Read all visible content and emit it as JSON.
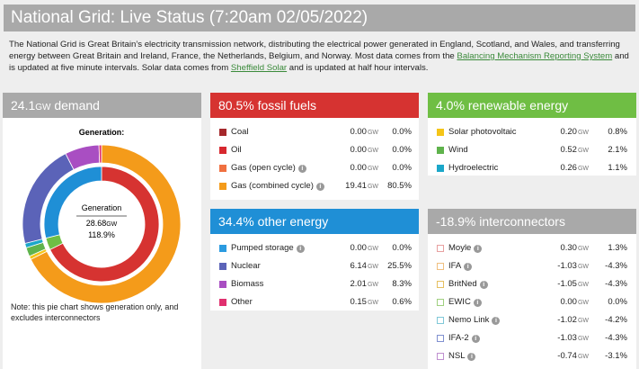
{
  "title": "National Grid: Live Status (7:20am 02/05/2022)",
  "intro": {
    "text1": "The National Grid is Great Britain’s electricity transmission network, distributing the electrical power generated in England, Scotland, and Wales, and transferring energy between Great Britain and Ireland, France, the Netherlands, Belgium, and Norway. Most data comes from the ",
    "link1": "Balancing Mechanism Reporting System",
    "text2": " and is updated at five minute intervals. Solar data comes from ",
    "link2": "Sheffield Solar",
    "text3": " and is updated at half hour intervals."
  },
  "unit": "GW",
  "demand": {
    "value": "24.1",
    "label": "demand"
  },
  "generation": {
    "heading": "Generation:",
    "label": "Generation",
    "total": "28.68",
    "percent": "118.9%"
  },
  "note": "Note: this pie chart shows generation only, and excludes interconnectors",
  "sections": [
    {
      "percent": "80.5%",
      "label": "fossil fuels",
      "color": "#d63331",
      "items": [
        {
          "name": "Coal",
          "gw": "0.00",
          "percent": "0.0%",
          "color": "#a5282b"
        },
        {
          "name": "Oil",
          "gw": "0.00",
          "percent": "0.0%",
          "color": "#d7282f"
        },
        {
          "name": "Gas (open cycle)",
          "gw": "0.00",
          "percent": "0.0%",
          "color": "#f07040",
          "info": true
        },
        {
          "name": "Gas (combined cycle)",
          "gw": "19.41",
          "percent": "80.5%",
          "color": "#f49b1a",
          "info": true
        }
      ]
    },
    {
      "percent": "4.0%",
      "label": "renewable energy",
      "color": "#6fbe44",
      "items": [
        {
          "name": "Solar photovoltaic",
          "gw": "0.20",
          "percent": "0.8%",
          "color": "#f5c518"
        },
        {
          "name": "Wind",
          "gw": "0.52",
          "percent": "2.1%",
          "color": "#5fb34c"
        },
        {
          "name": "Hydroelectric",
          "gw": "0.26",
          "percent": "1.1%",
          "color": "#1ba7c9"
        }
      ]
    },
    {
      "percent": "34.4%",
      "label": "other energy",
      "color": "#1f8fd6",
      "items": [
        {
          "name": "Pumped storage",
          "gw": "0.00",
          "percent": "0.0%",
          "color": "#2b9be0",
          "info": true
        },
        {
          "name": "Nuclear",
          "gw": "6.14",
          "percent": "25.5%",
          "color": "#5b63b8"
        },
        {
          "name": "Biomass",
          "gw": "2.01",
          "percent": "8.3%",
          "color": "#a94ec2"
        },
        {
          "name": "Other",
          "gw": "0.15",
          "percent": "0.6%",
          "color": "#e0306f"
        }
      ]
    },
    {
      "percent": "-18.9%",
      "label": "interconnectors",
      "color": "#a9a9a9",
      "outline": true,
      "items": [
        {
          "name": "Moyle",
          "gw": "0.30",
          "percent": "1.3%",
          "color": "#e8a0a0",
          "info": true
        },
        {
          "name": "IFA",
          "gw": "-1.03",
          "percent": "-4.3%",
          "color": "#f0c080",
          "info": true
        },
        {
          "name": "BritNed",
          "gw": "-1.05",
          "percent": "-4.3%",
          "color": "#e6c060",
          "info": true
        },
        {
          "name": "EWIC",
          "gw": "0.00",
          "percent": "0.0%",
          "color": "#a0d080",
          "info": true
        },
        {
          "name": "Nemo Link",
          "gw": "-1.02",
          "percent": "-4.2%",
          "color": "#80c8d8",
          "info": true
        },
        {
          "name": "IFA-2",
          "gw": "-1.03",
          "percent": "-4.3%",
          "color": "#8090d0",
          "info": true
        },
        {
          "name": "NSL",
          "gw": "-0.74",
          "percent": "-3.1%",
          "color": "#c090d0",
          "info": true
        }
      ]
    }
  ]
}
